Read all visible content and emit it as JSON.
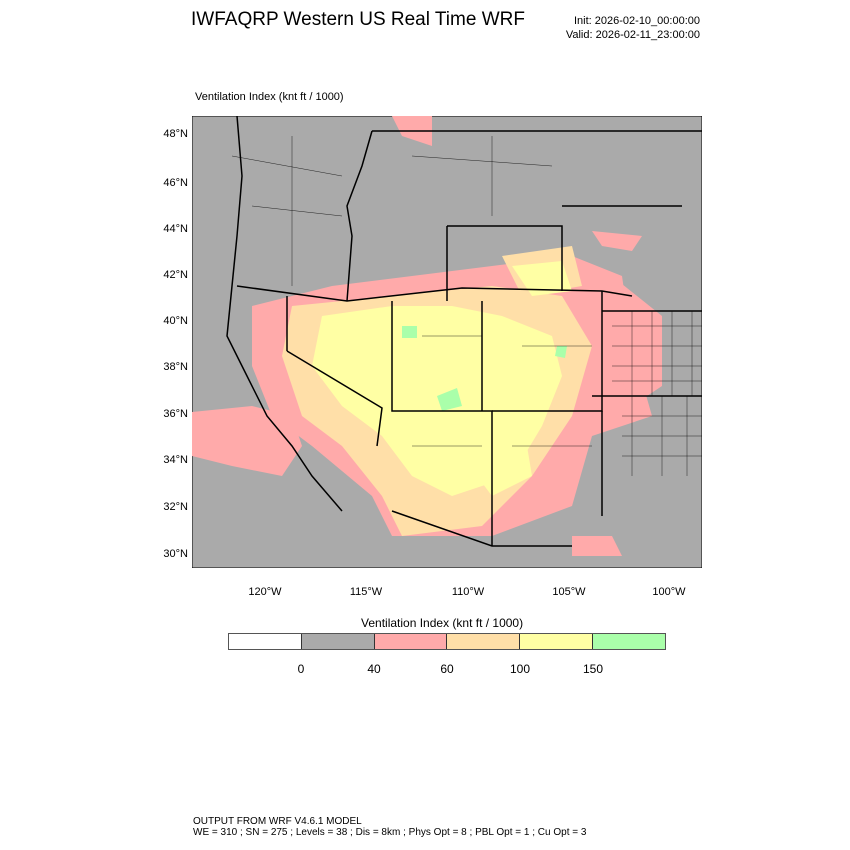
{
  "header": {
    "title": "IWFAQRP Western US Real Time WRF",
    "init": "Init: 2026-02-10_00:00:00",
    "valid": "Valid: 2026-02-11_23:00:00"
  },
  "plot": {
    "subtitle": "Ventilation Index   (knt ft / 1000)",
    "lat_labels": [
      "48°N",
      "46°N",
      "44°N",
      "42°N",
      "40°N",
      "38°N",
      "36°N",
      "34°N",
      "32°N",
      "30°N"
    ],
    "lon_labels": [
      "120°W",
      "115°W",
      "110°W",
      "105°W",
      "100°W"
    ]
  },
  "colorbar": {
    "title": "Ventilation Index  (knt ft / 1000)",
    "colors": [
      "#ffffff",
      "#aaaaaa",
      "#ffaaaa",
      "#ffdfa8",
      "#ffffa4",
      "#aaffaa"
    ],
    "labels": [
      "0",
      "40",
      "60",
      "100",
      "150"
    ]
  },
  "footer": {
    "line1": "OUTPUT FROM WRF V4.6.1 MODEL",
    "line2": "WE = 310 ; SN = 275 ; Levels = 38 ; Dis = 8km ; Phys Opt = 8 ; PBL Opt = 1 ; Cu Opt = 3"
  }
}
